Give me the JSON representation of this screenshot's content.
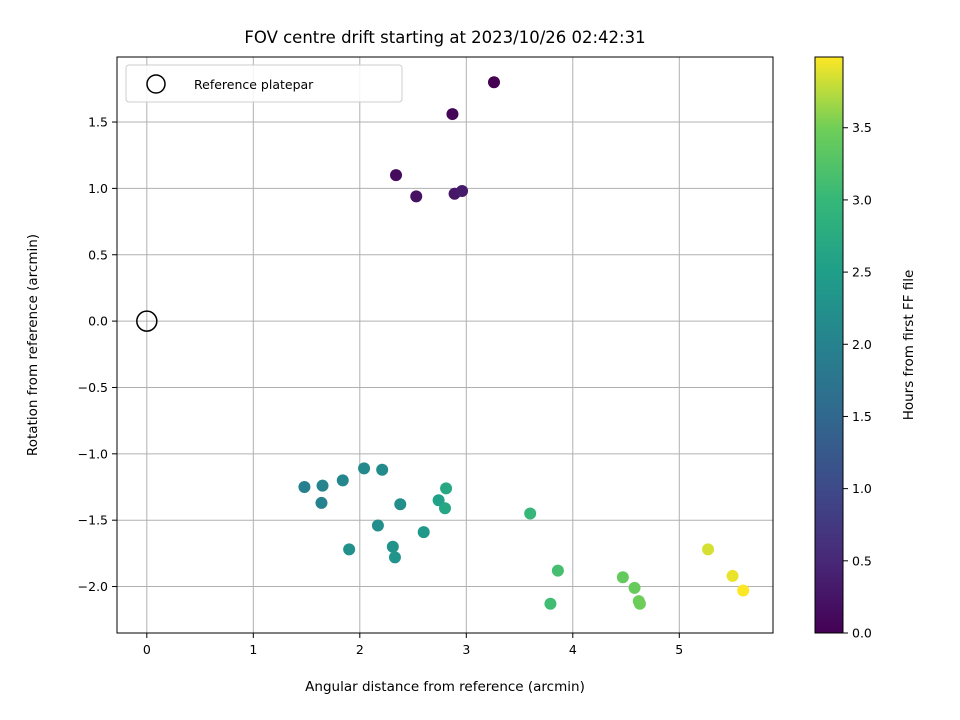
{
  "chart_data": {
    "type": "scatter",
    "title": "FOV centre drift starting at 2023/10/26 02:42:31",
    "xlabel": "Angular distance from reference (arcmin)",
    "ylabel": "Rotation from reference (arcmin)",
    "xlim": [
      -0.28,
      5.88
    ],
    "ylim": [
      -2.35,
      1.99
    ],
    "xticks": [
      0,
      1,
      2,
      3,
      4,
      5
    ],
    "yticks": [
      -2.0,
      -1.5,
      -1.0,
      -0.5,
      0.0,
      0.5,
      1.0,
      1.5
    ],
    "grid": true,
    "legend": {
      "placement": "top-left",
      "entries": [
        "Reference platepar"
      ]
    },
    "reference_point": {
      "x": 0,
      "y": 0
    },
    "colorbar": {
      "label": "Hours from first FF file",
      "range": [
        0.0,
        3.99
      ],
      "ticks": [
        0.0,
        0.5,
        1.0,
        1.5,
        2.0,
        2.5,
        3.0,
        3.5
      ],
      "colormap": "viridis"
    },
    "points": [
      {
        "x": 3.26,
        "y": 1.8,
        "c": 0.0
      },
      {
        "x": 2.87,
        "y": 1.56,
        "c": 0.07
      },
      {
        "x": 2.34,
        "y": 1.1,
        "c": 0.13
      },
      {
        "x": 2.53,
        "y": 0.94,
        "c": 0.2
      },
      {
        "x": 2.89,
        "y": 0.96,
        "c": 0.27
      },
      {
        "x": 2.96,
        "y": 0.98,
        "c": 0.33
      },
      {
        "x": 1.48,
        "y": -1.25,
        "c": 1.95
      },
      {
        "x": 1.64,
        "y": -1.37,
        "c": 2.0
      },
      {
        "x": 1.65,
        "y": -1.24,
        "c": 2.03
      },
      {
        "x": 1.84,
        "y": -1.2,
        "c": 2.08
      },
      {
        "x": 2.04,
        "y": -1.11,
        "c": 2.12
      },
      {
        "x": 2.21,
        "y": -1.12,
        "c": 2.15
      },
      {
        "x": 2.38,
        "y": -1.38,
        "c": 2.2
      },
      {
        "x": 2.17,
        "y": -1.54,
        "c": 2.22
      },
      {
        "x": 1.9,
        "y": -1.72,
        "c": 2.25
      },
      {
        "x": 2.31,
        "y": -1.7,
        "c": 2.3
      },
      {
        "x": 2.33,
        "y": -1.78,
        "c": 2.33
      },
      {
        "x": 2.6,
        "y": -1.59,
        "c": 2.4
      },
      {
        "x": 2.74,
        "y": -1.35,
        "c": 2.55
      },
      {
        "x": 2.8,
        "y": -1.41,
        "c": 2.65
      },
      {
        "x": 2.81,
        "y": -1.26,
        "c": 2.7
      },
      {
        "x": 3.6,
        "y": -1.45,
        "c": 3.0
      },
      {
        "x": 3.79,
        "y": -2.13,
        "c": 3.1
      },
      {
        "x": 3.86,
        "y": -1.88,
        "c": 3.15
      },
      {
        "x": 4.47,
        "y": -1.93,
        "c": 3.4
      },
      {
        "x": 4.58,
        "y": -2.01,
        "c": 3.43
      },
      {
        "x": 4.62,
        "y": -2.11,
        "c": 3.46
      },
      {
        "x": 4.63,
        "y": -2.13,
        "c": 3.48
      },
      {
        "x": 5.27,
        "y": -1.72,
        "c": 3.85
      },
      {
        "x": 5.5,
        "y": -1.92,
        "c": 3.92
      },
      {
        "x": 5.6,
        "y": -2.03,
        "c": 3.99
      }
    ]
  }
}
